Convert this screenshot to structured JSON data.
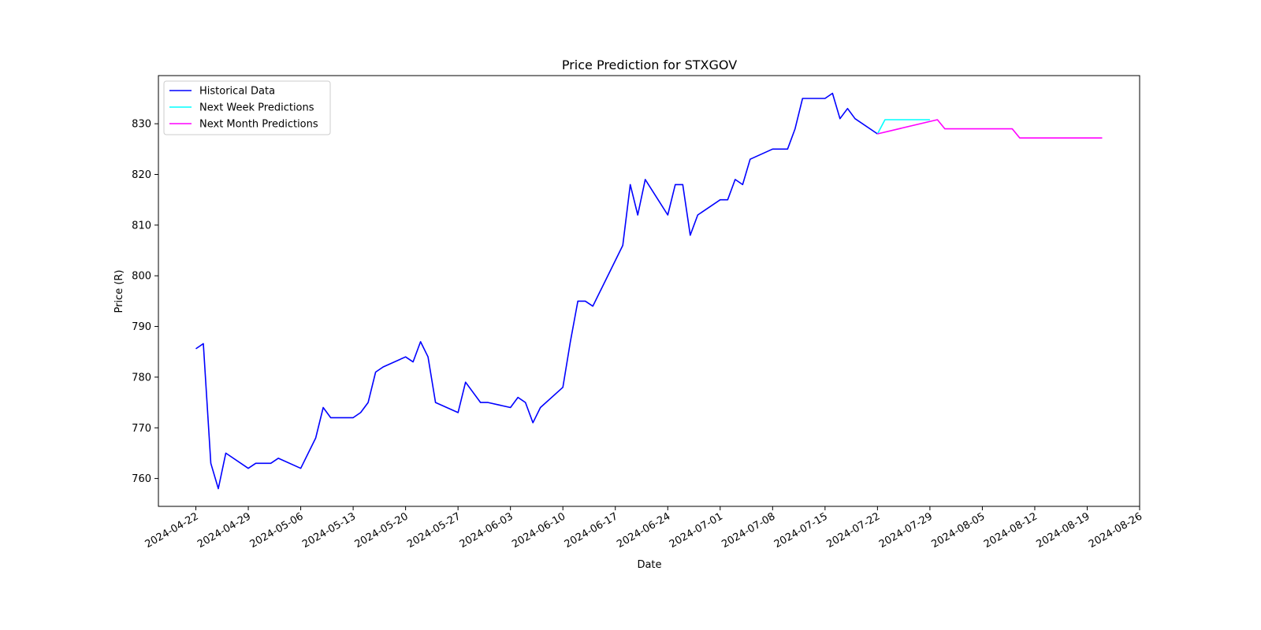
{
  "chart_data": {
    "type": "line",
    "title": "Price Prediction for STXGOV",
    "xlabel": "Date",
    "ylabel": "Price (R)",
    "ylim": [
      754.5,
      839.5
    ],
    "xlim": [
      "2024-04-17",
      "2024-08-26"
    ],
    "yticks": [
      760,
      770,
      780,
      790,
      800,
      810,
      820,
      830
    ],
    "xticks": [
      "2024-04-22",
      "2024-04-29",
      "2024-05-06",
      "2024-05-13",
      "2024-05-20",
      "2024-05-27",
      "2024-06-03",
      "2024-06-10",
      "2024-06-17",
      "2024-06-24",
      "2024-07-01",
      "2024-07-08",
      "2024-07-15",
      "2024-07-22",
      "2024-07-29",
      "2024-08-05",
      "2024-08-12",
      "2024-08-19",
      "2024-08-26"
    ],
    "legend_position": "upper-left",
    "series": [
      {
        "name": "Historical Data",
        "color": "#0000ff",
        "points": [
          [
            "2024-04-22",
            785.6
          ],
          [
            "2024-04-23",
            786.6
          ],
          [
            "2024-04-24",
            763
          ],
          [
            "2024-04-25",
            758
          ],
          [
            "2024-04-26",
            765
          ],
          [
            "2024-04-29",
            762
          ],
          [
            "2024-04-30",
            763
          ],
          [
            "2024-05-02",
            763
          ],
          [
            "2024-05-03",
            764
          ],
          [
            "2024-05-06",
            762
          ],
          [
            "2024-05-08",
            768
          ],
          [
            "2024-05-09",
            774
          ],
          [
            "2024-05-10",
            772
          ],
          [
            "2024-05-13",
            772
          ],
          [
            "2024-05-14",
            773
          ],
          [
            "2024-05-15",
            775
          ],
          [
            "2024-05-16",
            781
          ],
          [
            "2024-05-17",
            782
          ],
          [
            "2024-05-20",
            784
          ],
          [
            "2024-05-21",
            783
          ],
          [
            "2024-05-22",
            787
          ],
          [
            "2024-05-23",
            784
          ],
          [
            "2024-05-24",
            775
          ],
          [
            "2024-05-27",
            773
          ],
          [
            "2024-05-28",
            779
          ],
          [
            "2024-05-30",
            775
          ],
          [
            "2024-05-31",
            775
          ],
          [
            "2024-06-03",
            774
          ],
          [
            "2024-06-04",
            776
          ],
          [
            "2024-06-05",
            775
          ],
          [
            "2024-06-06",
            771
          ],
          [
            "2024-06-07",
            774
          ],
          [
            "2024-06-10",
            778
          ],
          [
            "2024-06-11",
            787
          ],
          [
            "2024-06-12",
            795
          ],
          [
            "2024-06-13",
            795
          ],
          [
            "2024-06-14",
            794
          ],
          [
            "2024-06-18",
            806
          ],
          [
            "2024-06-19",
            818
          ],
          [
            "2024-06-20",
            812
          ],
          [
            "2024-06-21",
            819
          ],
          [
            "2024-06-24",
            812
          ],
          [
            "2024-06-25",
            818
          ],
          [
            "2024-06-26",
            818
          ],
          [
            "2024-06-27",
            808
          ],
          [
            "2024-06-28",
            812
          ],
          [
            "2024-07-01",
            815
          ],
          [
            "2024-07-02",
            815
          ],
          [
            "2024-07-03",
            819
          ],
          [
            "2024-07-04",
            818
          ],
          [
            "2024-07-05",
            823
          ],
          [
            "2024-07-08",
            825
          ],
          [
            "2024-07-09",
            825
          ],
          [
            "2024-07-10",
            825
          ],
          [
            "2024-07-11",
            829
          ],
          [
            "2024-07-12",
            835
          ],
          [
            "2024-07-15",
            835
          ],
          [
            "2024-07-16",
            836
          ],
          [
            "2024-07-17",
            831
          ],
          [
            "2024-07-18",
            833
          ],
          [
            "2024-07-19",
            831
          ],
          [
            "2024-07-22",
            828
          ]
        ]
      },
      {
        "name": "Next Week Predictions",
        "color": "#00ffff",
        "points": [
          [
            "2024-07-22",
            828
          ],
          [
            "2024-07-23",
            830.8
          ],
          [
            "2024-07-24",
            830.8
          ],
          [
            "2024-07-25",
            830.8
          ],
          [
            "2024-07-26",
            830.8
          ],
          [
            "2024-07-29",
            830.8
          ]
        ]
      },
      {
        "name": "Next Month Predictions",
        "color": "#ff00ff",
        "points": [
          [
            "2024-07-22",
            828
          ],
          [
            "2024-07-30",
            830.8
          ],
          [
            "2024-07-31",
            829
          ],
          [
            "2024-08-01",
            829
          ],
          [
            "2024-08-02",
            829
          ],
          [
            "2024-08-05",
            829
          ],
          [
            "2024-08-06",
            829
          ],
          [
            "2024-08-07",
            829
          ],
          [
            "2024-08-08",
            829
          ],
          [
            "2024-08-09",
            829
          ],
          [
            "2024-08-10",
            827.2
          ],
          [
            "2024-08-12",
            827.2
          ],
          [
            "2024-08-13",
            827.2
          ],
          [
            "2024-08-14",
            827.2
          ],
          [
            "2024-08-15",
            827.2
          ],
          [
            "2024-08-16",
            827.2
          ],
          [
            "2024-08-19",
            827.2
          ],
          [
            "2024-08-20",
            827.2
          ],
          [
            "2024-08-21",
            827.2
          ]
        ]
      }
    ]
  }
}
